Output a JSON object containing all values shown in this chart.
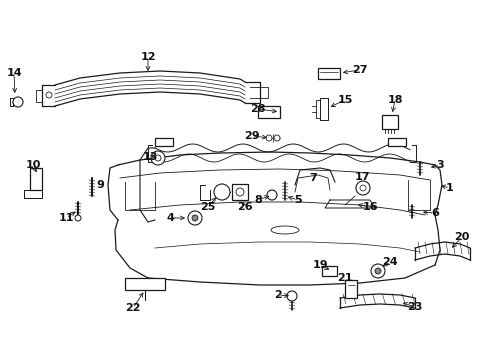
{
  "background_color": "#ffffff",
  "line_color": "#1a1a1a",
  "text_color": "#111111",
  "fig_width": 4.89,
  "fig_height": 3.6,
  "dpi": 100
}
